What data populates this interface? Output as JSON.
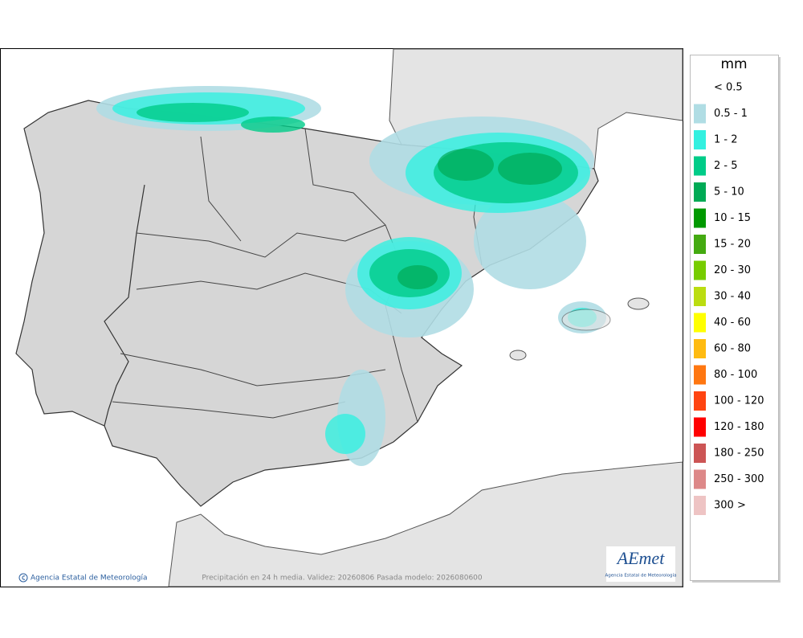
{
  "legend": {
    "title": "mm",
    "items": [
      {
        "label": "< 0.5"
      },
      {
        "label": "0.5 - 1",
        "color": "#b0dde4"
      },
      {
        "label": "1 - 2",
        "color": "#33f0e0"
      },
      {
        "label": "2 - 5",
        "color": "#00cc88"
      },
      {
        "label": "5 - 10",
        "color": "#00aa55"
      },
      {
        "label": "10 - 15",
        "color": "#009900"
      },
      {
        "label": "15 - 20",
        "color": "#44aa11"
      },
      {
        "label": "20 - 30",
        "color": "#77cc00"
      },
      {
        "label": "30 - 40",
        "color": "#bbdd11"
      },
      {
        "label": "40 - 60",
        "color": "#ffff00"
      },
      {
        "label": "60 - 80",
        "color": "#ffbb11"
      },
      {
        "label": "80 - 100",
        "color": "#ff7711"
      },
      {
        "label": "100 - 120",
        "color": "#ff4411"
      },
      {
        "label": "120 - 180",
        "color": "#ff0000"
      },
      {
        "label": "180 - 250",
        "color": "#cc5555"
      },
      {
        "label": "250 - 300",
        "color": "#dd8888"
      },
      {
        "label": "300 >",
        "color": "#eec4c4"
      }
    ]
  },
  "footer": {
    "credit": "Agencia Estatal de Meteorología",
    "caption": "Precipitación en 24 h media. Validez: 20260806 Pasada modelo: 2026080600"
  },
  "logo": {
    "name": "AEmet",
    "subtitle": "Agencia Estatal de Meteorología"
  }
}
